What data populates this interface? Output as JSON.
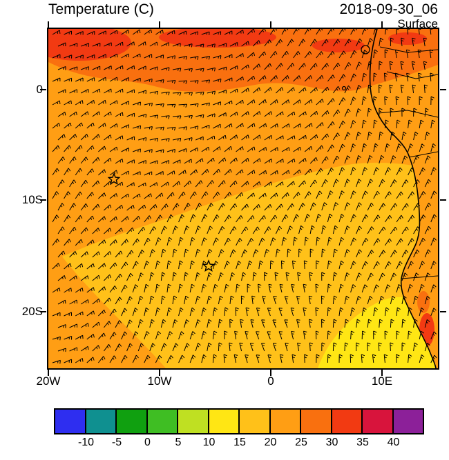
{
  "header": {
    "title": "Temperature (C)",
    "datetime": "2018-09-30_06",
    "level": "Surface"
  },
  "axes": {
    "y_labels": [
      "0",
      "10S",
      "20S"
    ],
    "x_labels": [
      "20W",
      "10W",
      "0",
      "10E"
    ]
  },
  "colorbar": {
    "levels": [
      "-10",
      "-5",
      "0",
      "5",
      "10",
      "15",
      "20",
      "25",
      "30",
      "35",
      "40"
    ],
    "colors": [
      "#2e2ef0",
      "#0f9090",
      "#10a010",
      "#3fbe23",
      "#bfe022",
      "#ffe614",
      "#ffc119",
      "#ff9e14",
      "#f9700f",
      "#f23a12",
      "#d8143c",
      "#8c2099"
    ]
  },
  "palette": {
    "field_orange": "#ff9e14",
    "field_gold": "#ffc119",
    "field_yellow": "#ffe614",
    "field_dark_orange": "#f9700f",
    "field_red": "#f23a12",
    "land_orange": "#ff9e14",
    "ink": "#000000"
  },
  "chart_data": {
    "type": "heatmap",
    "title": "Temperature (C)",
    "valid_time": "2018-09-30_06",
    "level": "Surface",
    "units": "C",
    "x_tick_labels": [
      "20W",
      "10W",
      "0",
      "10E"
    ],
    "y_tick_labels": [
      "0",
      "10S",
      "20S"
    ],
    "axis_extent": {
      "lon": [
        "20W",
        "15E"
      ],
      "lat": [
        "5N",
        "25S"
      ]
    },
    "colorbar_levels": [
      -10,
      -5,
      0,
      5,
      10,
      15,
      20,
      25,
      30,
      35,
      40
    ],
    "colorbar_colors": [
      "#2e2ef0",
      "#0f9090",
      "#10a010",
      "#3fbe23",
      "#bfe022",
      "#ffe614",
      "#ffc119",
      "#ff9e14",
      "#f9700f",
      "#f23a12",
      "#d8143c",
      "#8c2099"
    ],
    "field_regions": [
      {
        "area": "northern band north of ~1N",
        "approx_range_c": "25-30",
        "patches": "30-35 along top edge"
      },
      {
        "area": "central and western ocean",
        "approx_range_c": "20-25"
      },
      {
        "area": "southeastern ocean below diagonal front",
        "approx_range_c": "15-20"
      },
      {
        "area": "patch near southeast coast (bottom right)",
        "approx_range_c": "10-15"
      },
      {
        "area": "land along right edge",
        "approx_range_c": "20-30, small 30-35 patches near bottom coast"
      }
    ],
    "overlays": [
      "wind barbs",
      "coastline and country borders",
      "two star markers"
    ],
    "markers": [
      {
        "symbol": "star",
        "approx_lon": "14W",
        "approx_lat": "8S"
      },
      {
        "symbol": "star",
        "approx_lon": "5.5W",
        "approx_lat": "16S"
      }
    ]
  }
}
